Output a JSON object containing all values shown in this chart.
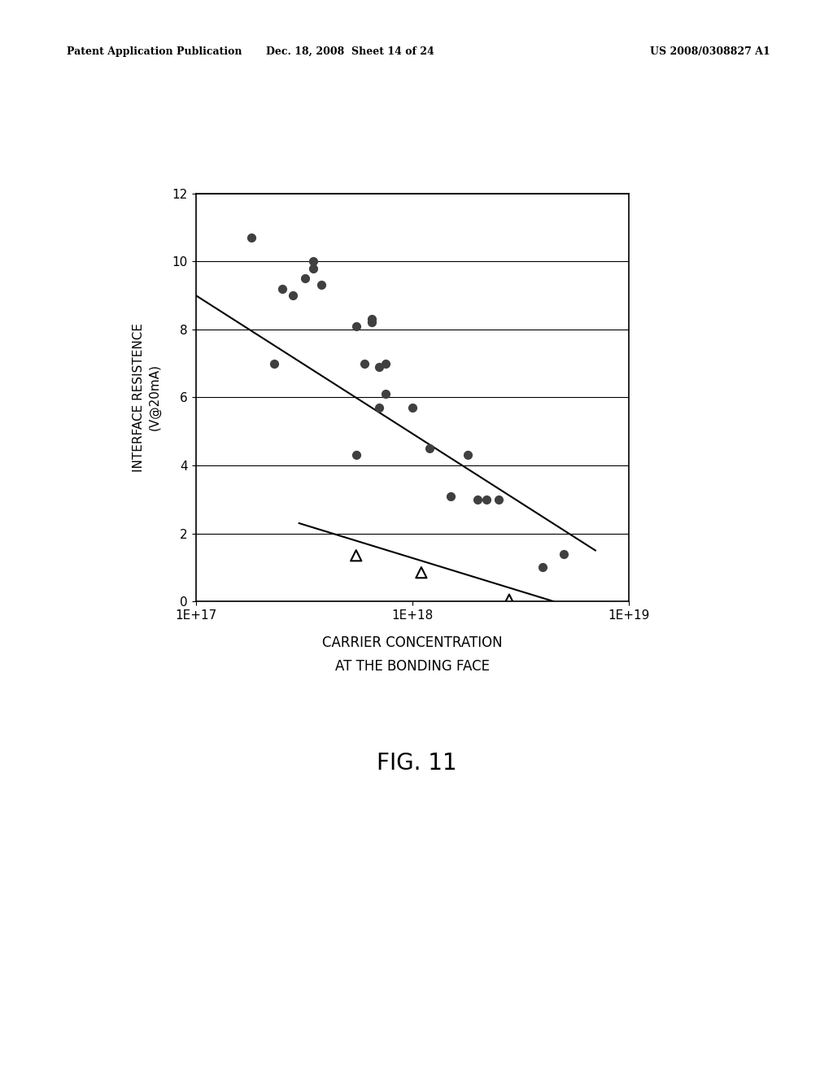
{
  "title_header_left": "Patent Application Publication",
  "title_header_mid": "Dec. 18, 2008  Sheet 14 of 24",
  "title_header_right": "US 2008/0308827 A1",
  "fig_label": "FIG. 11",
  "xlabel_line1": "CARRIER CONCENTRATION",
  "xlabel_line2": "AT THE BONDING FACE",
  "ylabel_line1": "INTERFACE RESISTENCE",
  "ylabel_line2": "(V@20mA)",
  "xlim_log": [
    1e+17,
    1e+19
  ],
  "ylim": [
    0,
    12
  ],
  "yticks": [
    0,
    2,
    4,
    6,
    8,
    10,
    12
  ],
  "xtick_labels": [
    "1E+17",
    "1E+18",
    "1E+19"
  ],
  "xtick_vals": [
    1e+17,
    1e+18,
    1e+19
  ],
  "circle_points": [
    [
      1.8e+17,
      10.7
    ],
    [
      2.5e+17,
      9.2
    ],
    [
      2.8e+17,
      9.0
    ],
    [
      3.2e+17,
      9.5
    ],
    [
      3.5e+17,
      9.8
    ],
    [
      3.5e+17,
      10.0
    ],
    [
      3.8e+17,
      9.3
    ],
    [
      2.3e+17,
      7.0
    ],
    [
      5.5e+17,
      8.1
    ],
    [
      6.5e+17,
      8.2
    ],
    [
      6.5e+17,
      8.3
    ],
    [
      6e+17,
      7.0
    ],
    [
      7e+17,
      6.9
    ],
    [
      7.5e+17,
      7.0
    ],
    [
      7e+17,
      5.7
    ],
    [
      5.5e+17,
      4.3
    ],
    [
      7.5e+17,
      6.1
    ],
    [
      1e+18,
      5.7
    ],
    [
      1.2e+18,
      4.5
    ],
    [
      1.5e+18,
      3.1
    ],
    [
      1.8e+18,
      4.3
    ],
    [
      2e+18,
      3.0
    ],
    [
      2.2e+18,
      3.0
    ],
    [
      2.5e+18,
      3.0
    ],
    [
      5e+18,
      1.4
    ],
    [
      4e+18,
      1.0
    ]
  ],
  "triangle_points": [
    [
      5.5e+17,
      1.35
    ],
    [
      1.1e+18,
      0.85
    ],
    [
      2.8e+18,
      0.05
    ]
  ],
  "line1_x": [
    1e+17,
    7e+18
  ],
  "line1_y": [
    9.0,
    1.5
  ],
  "line2_x": [
    3e+17,
    4.5e+18
  ],
  "line2_y": [
    2.3,
    0.0
  ],
  "bg_color": "#ffffff",
  "scatter_color": "#404040",
  "line_color": "#000000"
}
